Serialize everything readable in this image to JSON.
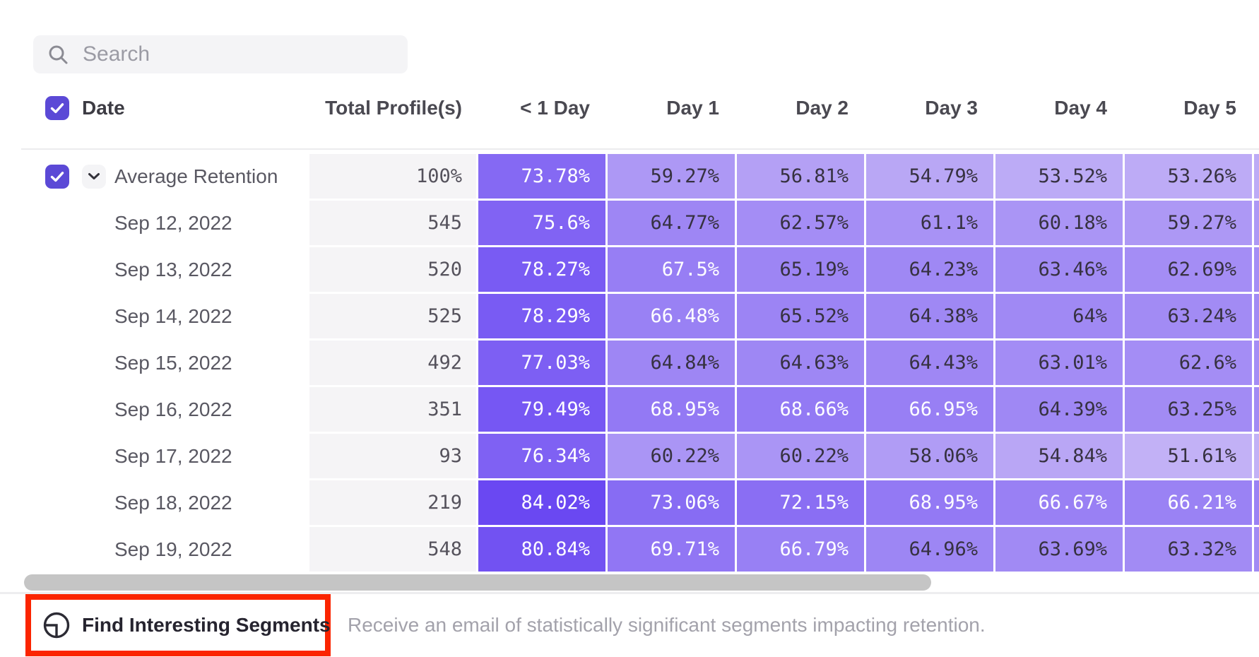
{
  "search": {
    "placeholder": "Search"
  },
  "table": {
    "header": {
      "date": "Date",
      "total_profiles": "Total Profile(s)",
      "days": [
        "< 1 Day",
        "Day 1",
        "Day 2",
        "Day 3",
        "Day 4",
        "Day 5"
      ]
    },
    "rows": [
      {
        "label": "Average Retention",
        "profiles": "100%",
        "is_average": true,
        "cells": [
          "73.78%",
          "59.27%",
          "56.81%",
          "54.79%",
          "53.52%",
          "53.26%"
        ]
      },
      {
        "label": "Sep 12, 2022",
        "profiles": "545",
        "cells": [
          "75.6%",
          "64.77%",
          "62.57%",
          "61.1%",
          "60.18%",
          "59.27%"
        ]
      },
      {
        "label": "Sep 13, 2022",
        "profiles": "520",
        "cells": [
          "78.27%",
          "67.5%",
          "65.19%",
          "64.23%",
          "63.46%",
          "62.69%"
        ]
      },
      {
        "label": "Sep 14, 2022",
        "profiles": "525",
        "cells": [
          "78.29%",
          "66.48%",
          "65.52%",
          "64.38%",
          "64%",
          "63.24%"
        ]
      },
      {
        "label": "Sep 15, 2022",
        "profiles": "492",
        "cells": [
          "77.03%",
          "64.84%",
          "64.63%",
          "64.43%",
          "63.01%",
          "62.6%"
        ]
      },
      {
        "label": "Sep 16, 2022",
        "profiles": "351",
        "cells": [
          "79.49%",
          "68.95%",
          "68.66%",
          "66.95%",
          "64.39%",
          "63.25%"
        ]
      },
      {
        "label": "Sep 17, 2022",
        "profiles": "93",
        "cells": [
          "76.34%",
          "60.22%",
          "60.22%",
          "58.06%",
          "54.84%",
          "51.61%"
        ]
      },
      {
        "label": "Sep 18, 2022",
        "profiles": "219",
        "cells": [
          "84.02%",
          "73.06%",
          "72.15%",
          "68.95%",
          "66.67%",
          "66.21%"
        ]
      },
      {
        "label": "Sep 19, 2022",
        "profiles": "548",
        "cells": [
          "80.84%",
          "69.71%",
          "66.79%",
          "64.96%",
          "63.69%",
          "63.32%"
        ]
      }
    ]
  },
  "footer": {
    "button_label": "Find Interesting Segments",
    "description": "Receive an email of statistically significant segments impacting retention."
  },
  "colors": {
    "accent_purple": "#5b49d6",
    "cell_dark_purple": "#6745f2",
    "cell_light_purple": "#c6b6f6",
    "cell_gray_bg": "#f5f4f6",
    "highlight_red": "#fb2500",
    "scrollbar_thumb": "#c5c5c5"
  }
}
